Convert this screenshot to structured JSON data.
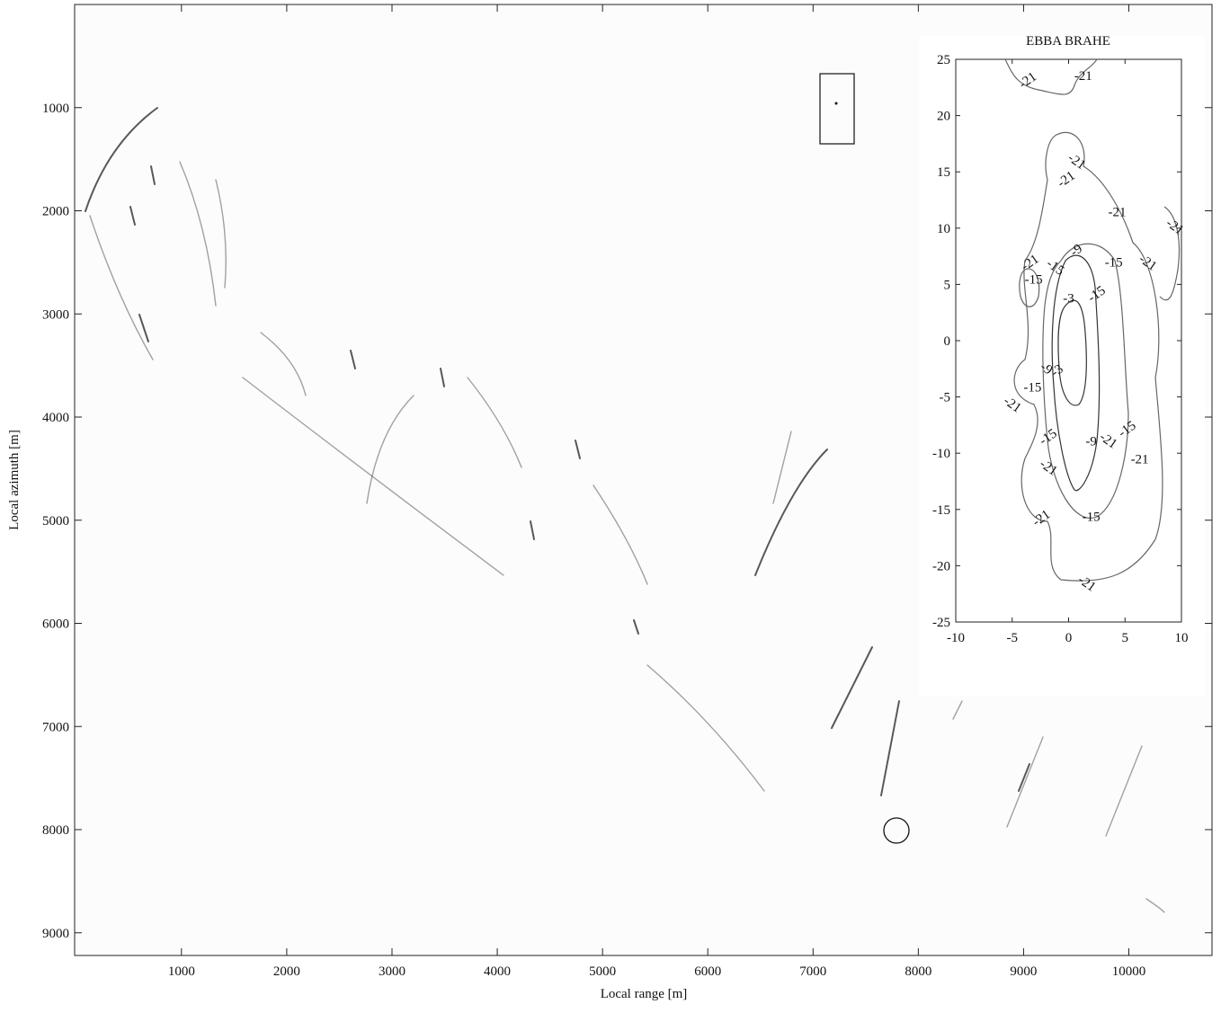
{
  "chart_data": [
    {
      "type": "image",
      "xlabel": "Local range [m]",
      "ylabel": "Local azimuth [m]",
      "xlim": [
        -15,
        10790
      ],
      "ylim": [
        0,
        9220
      ],
      "xticks": [
        1000,
        2000,
        3000,
        4000,
        5000,
        6000,
        7000,
        8000,
        9000,
        10000
      ],
      "yticks": [
        1000,
        2000,
        3000,
        4000,
        5000,
        6000,
        7000,
        8000,
        9000
      ]
    },
    {
      "type": "contour",
      "title": "EBBA BRAHE",
      "xlim": [
        -10,
        10
      ],
      "ylim": [
        -25,
        25
      ],
      "xticks": [
        -10,
        -5,
        0,
        5,
        10
      ],
      "yticks": [
        -25,
        -20,
        -15,
        -10,
        -5,
        0,
        5,
        10,
        15,
        20,
        25
      ],
      "contour_labels": [
        {
          "text": "-21",
          "x": -3.6,
          "y": 23.1
        },
        {
          "text": "-21",
          "x": 1.3,
          "y": 23.5
        },
        {
          "text": "-21",
          "x": 0.7,
          "y": 15.9
        },
        {
          "text": "-21",
          "x": -0.2,
          "y": 14.3
        },
        {
          "text": "-21",
          "x": 4.3,
          "y": 11.4
        },
        {
          "text": "-21",
          "x": 9.4,
          "y": 10.1
        },
        {
          "text": "-21",
          "x": -3.4,
          "y": 6.9
        },
        {
          "text": "-15",
          "x": -3.1,
          "y": 5.4
        },
        {
          "text": "-15",
          "x": -1.2,
          "y": 6.5
        },
        {
          "text": "-9",
          "x": 0.7,
          "y": 8.0
        },
        {
          "text": "-15",
          "x": 4.0,
          "y": 6.9
        },
        {
          "text": "-21",
          "x": 7.0,
          "y": 6.9
        },
        {
          "text": "-15",
          "x": 2.5,
          "y": 4.1
        },
        {
          "text": "-3",
          "x": 0.0,
          "y": 3.7
        },
        {
          "text": "-9",
          "x": -2.0,
          "y": -2.5
        },
        {
          "text": "-3",
          "x": -1.0,
          "y": -2.7
        },
        {
          "text": "-15",
          "x": -3.2,
          "y": -4.2
        },
        {
          "text": "-21",
          "x": -5.0,
          "y": -5.7
        },
        {
          "text": "-15",
          "x": -1.8,
          "y": -8.6
        },
        {
          "text": "-9",
          "x": 2.0,
          "y": -9.0
        },
        {
          "text": "-21",
          "x": 3.5,
          "y": -8.9
        },
        {
          "text": "-15",
          "x": 5.2,
          "y": -7.9
        },
        {
          "text": "-21",
          "x": 6.3,
          "y": -10.6
        },
        {
          "text": "-21",
          "x": -1.8,
          "y": -11.3
        },
        {
          "text": "-21",
          "x": -2.4,
          "y": -15.8
        },
        {
          "text": "-15",
          "x": 2.0,
          "y": -15.7
        },
        {
          "text": "-21",
          "x": 1.6,
          "y": -21.6
        }
      ]
    }
  ]
}
